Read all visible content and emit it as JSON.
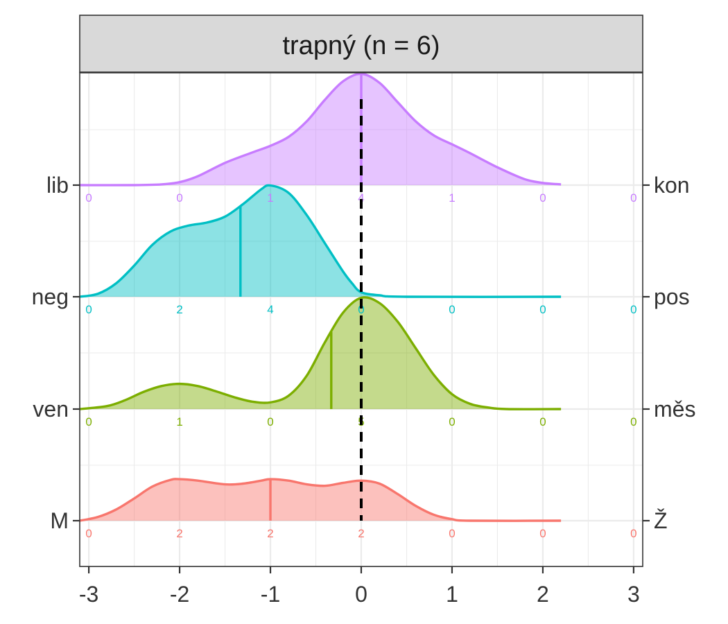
{
  "chart_data": {
    "type": "ridgeline",
    "title": "trapný (n = 6)",
    "x_ticks": [
      -3,
      -2,
      -1,
      0,
      1,
      2,
      3
    ],
    "x_tick_labels": [
      "-3",
      "-2",
      "-1",
      "0",
      "1",
      "2",
      "3"
    ],
    "xlim": [
      -3.1,
      3.1
    ],
    "reference_line_x": 0,
    "grid": true,
    "count_positions": [
      -3,
      -2,
      -1,
      0,
      1,
      2,
      3
    ],
    "series": [
      {
        "left_label": "lib",
        "right_label": "kon",
        "color": "#C77CFF",
        "mean": 0,
        "counts": [
          "0",
          "0",
          "1",
          "4",
          "1",
          "0",
          "0"
        ],
        "density": [
          [
            -3.1,
            0.0
          ],
          [
            -2.5,
            0.0
          ],
          [
            -2.2,
            0.01
          ],
          [
            -2.0,
            0.04
          ],
          [
            -1.8,
            0.12
          ],
          [
            -1.5,
            0.3
          ],
          [
            -1.2,
            0.44
          ],
          [
            -1.0,
            0.53
          ],
          [
            -0.8,
            0.65
          ],
          [
            -0.6,
            0.86
          ],
          [
            -0.4,
            1.15
          ],
          [
            -0.2,
            1.4
          ],
          [
            0.0,
            1.5
          ],
          [
            0.2,
            1.38
          ],
          [
            0.4,
            1.12
          ],
          [
            0.6,
            0.86
          ],
          [
            0.8,
            0.67
          ],
          [
            1.0,
            0.55
          ],
          [
            1.2,
            0.43
          ],
          [
            1.5,
            0.24
          ],
          [
            1.8,
            0.08
          ],
          [
            2.0,
            0.03
          ],
          [
            2.2,
            0.01
          ]
        ]
      },
      {
        "left_label": "neg",
        "right_label": "pos",
        "color": "#00BFC4",
        "mean": -1.33,
        "counts": [
          "0",
          "2",
          "4",
          "0",
          "0",
          "0",
          "0"
        ],
        "density": [
          [
            -3.1,
            0.0
          ],
          [
            -2.9,
            0.04
          ],
          [
            -2.7,
            0.18
          ],
          [
            -2.5,
            0.42
          ],
          [
            -2.3,
            0.7
          ],
          [
            -2.1,
            0.88
          ],
          [
            -1.9,
            0.96
          ],
          [
            -1.7,
            1.0
          ],
          [
            -1.5,
            1.08
          ],
          [
            -1.3,
            1.25
          ],
          [
            -1.1,
            1.45
          ],
          [
            -1.0,
            1.5
          ],
          [
            -0.8,
            1.4
          ],
          [
            -0.6,
            1.1
          ],
          [
            -0.4,
            0.72
          ],
          [
            -0.2,
            0.34
          ],
          [
            -0.1,
            0.18
          ],
          [
            0.0,
            0.06
          ],
          [
            0.2,
            0.02
          ],
          [
            0.5,
            0.0
          ],
          [
            2.2,
            0.0
          ]
        ]
      },
      {
        "left_label": "ven",
        "right_label": "měs",
        "color": "#7CAE00",
        "mean": -0.33,
        "counts": [
          "0",
          "1",
          "0",
          "5",
          "0",
          "0",
          "0"
        ],
        "density": [
          [
            -3.1,
            0.0
          ],
          [
            -2.8,
            0.04
          ],
          [
            -2.6,
            0.12
          ],
          [
            -2.4,
            0.23
          ],
          [
            -2.2,
            0.31
          ],
          [
            -2.0,
            0.34
          ],
          [
            -1.8,
            0.31
          ],
          [
            -1.6,
            0.24
          ],
          [
            -1.4,
            0.16
          ],
          [
            -1.2,
            0.1
          ],
          [
            -1.0,
            0.09
          ],
          [
            -0.8,
            0.18
          ],
          [
            -0.6,
            0.45
          ],
          [
            -0.4,
            0.9
          ],
          [
            -0.2,
            1.3
          ],
          [
            0.0,
            1.5
          ],
          [
            0.2,
            1.43
          ],
          [
            0.4,
            1.18
          ],
          [
            0.6,
            0.82
          ],
          [
            0.8,
            0.46
          ],
          [
            1.0,
            0.2
          ],
          [
            1.2,
            0.07
          ],
          [
            1.4,
            0.02
          ],
          [
            1.6,
            0.0
          ],
          [
            2.2,
            0.0
          ]
        ]
      },
      {
        "left_label": "M",
        "right_label": "Ž",
        "color": "#F8766D",
        "mean": -1,
        "counts": [
          "0",
          "2",
          "2",
          "2",
          "0",
          "0",
          "0"
        ],
        "density": [
          [
            -3.1,
            0.0
          ],
          [
            -2.9,
            0.05
          ],
          [
            -2.7,
            0.15
          ],
          [
            -2.5,
            0.3
          ],
          [
            -2.3,
            0.46
          ],
          [
            -2.1,
            0.55
          ],
          [
            -2.0,
            0.56
          ],
          [
            -1.8,
            0.54
          ],
          [
            -1.5,
            0.49
          ],
          [
            -1.3,
            0.5
          ],
          [
            -1.1,
            0.54
          ],
          [
            -1.0,
            0.56
          ],
          [
            -0.8,
            0.54
          ],
          [
            -0.6,
            0.49
          ],
          [
            -0.4,
            0.47
          ],
          [
            -0.2,
            0.51
          ],
          [
            0.0,
            0.54
          ],
          [
            0.2,
            0.5
          ],
          [
            0.4,
            0.36
          ],
          [
            0.6,
            0.2
          ],
          [
            0.8,
            0.08
          ],
          [
            1.0,
            0.02
          ],
          [
            1.2,
            0.0
          ],
          [
            2.2,
            0.0
          ]
        ]
      }
    ]
  }
}
